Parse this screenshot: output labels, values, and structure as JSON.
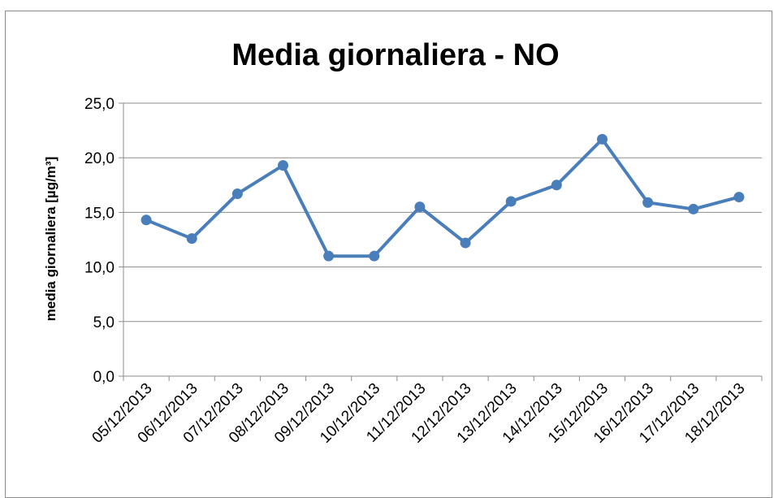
{
  "chart_data": {
    "type": "line",
    "title": "Media giornaliera - NO",
    "ylabel": "media giornaliera [µg/m³]",
    "xlabel": "",
    "ylim": [
      0,
      25
    ],
    "yticks": [
      "0,0",
      "5,0",
      "10,0",
      "15,0",
      "20,0",
      "25,0"
    ],
    "ytick_values": [
      0,
      5,
      10,
      15,
      20,
      25
    ],
    "grid": true,
    "legend": "none",
    "color": "#4a7ebb",
    "categories": [
      "05/12/2013",
      "06/12/2013",
      "07/12/2013",
      "08/12/2013",
      "09/12/2013",
      "10/12/2013",
      "11/12/2013",
      "12/12/2013",
      "13/12/2013",
      "14/12/2013",
      "15/12/2013",
      "16/12/2013",
      "17/12/2013",
      "18/12/2013"
    ],
    "values": [
      14.3,
      12.6,
      16.7,
      19.3,
      11.0,
      11.0,
      15.5,
      12.2,
      16.0,
      17.5,
      21.7,
      15.9,
      15.3,
      16.4
    ]
  }
}
